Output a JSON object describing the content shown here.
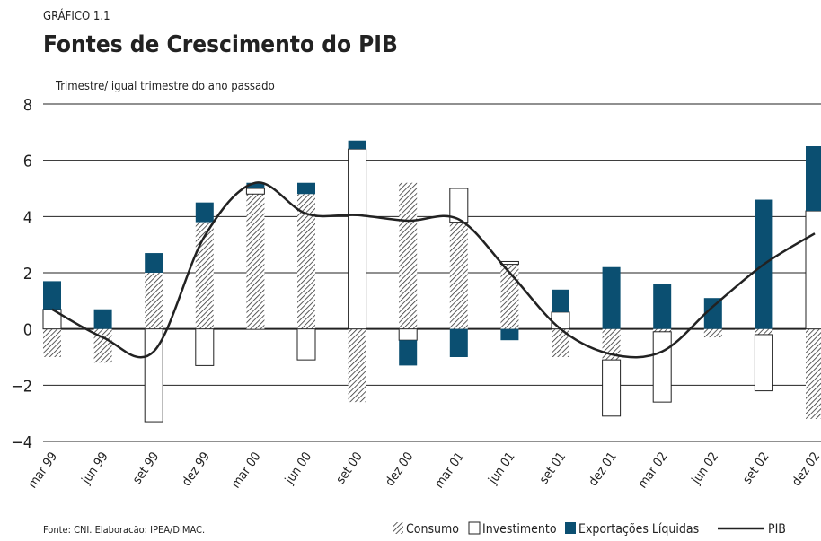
{
  "chart_data": {
    "type": "bar",
    "label": "GRÁFICO 1.1",
    "title": "Fontes de Crescimento do PIB",
    "subtitle": "Trimestre/ igual trimestre do ano passado",
    "source": "Fonte: CNI. Elaboracão: IPEA/DIMAC.",
    "categories": [
      "mar 99",
      "jun 99",
      "set 99",
      "dez 99",
      "mar 00",
      "jun 00",
      "set 00",
      "dez 00",
      "mar 01",
      "jun 01",
      "set 01",
      "dez 01",
      "mar 02",
      "jun 02",
      "set 02",
      "dez 02"
    ],
    "series": [
      {
        "name": "Consumo",
        "color": "hatch",
        "values": [
          -1.0,
          -1.2,
          2.0,
          3.8,
          4.8,
          4.8,
          -2.6,
          5.2,
          3.8,
          2.3,
          -1.0,
          -1.1,
          -0.1,
          -0.3,
          -0.2,
          -3.2
        ]
      },
      {
        "name": "Investimento",
        "color": "#ffffff",
        "values": [
          0.7,
          0.0,
          -3.3,
          -1.3,
          0.2,
          -1.1,
          6.4,
          -0.4,
          1.2,
          0.1,
          0.6,
          -2.0,
          -2.5,
          0.0,
          -2.0,
          4.2
        ]
      },
      {
        "name": "Exportações Líquidas",
        "color": "#0b4f71",
        "values": [
          1.0,
          0.7,
          0.7,
          0.7,
          0.2,
          0.4,
          0.3,
          -0.9,
          -1.0,
          -0.4,
          0.8,
          2.2,
          1.6,
          1.1,
          4.6,
          2.3
        ]
      },
      {
        "name": "PIB",
        "type": "line",
        "color": "#222222",
        "values": [
          0.7,
          -0.3,
          -0.8,
          3.3,
          5.2,
          4.1,
          4.05,
          3.85,
          3.9,
          2.0,
          0.0,
          -0.9,
          -0.8,
          0.8,
          2.3,
          3.4
        ]
      }
    ],
    "ylim": [
      -4,
      8
    ],
    "yticks": [
      {
        "value": -4,
        "label": "−4"
      },
      {
        "value": -2,
        "label": "−2"
      },
      0,
      2,
      4,
      6,
      8
    ],
    "grid": true
  }
}
